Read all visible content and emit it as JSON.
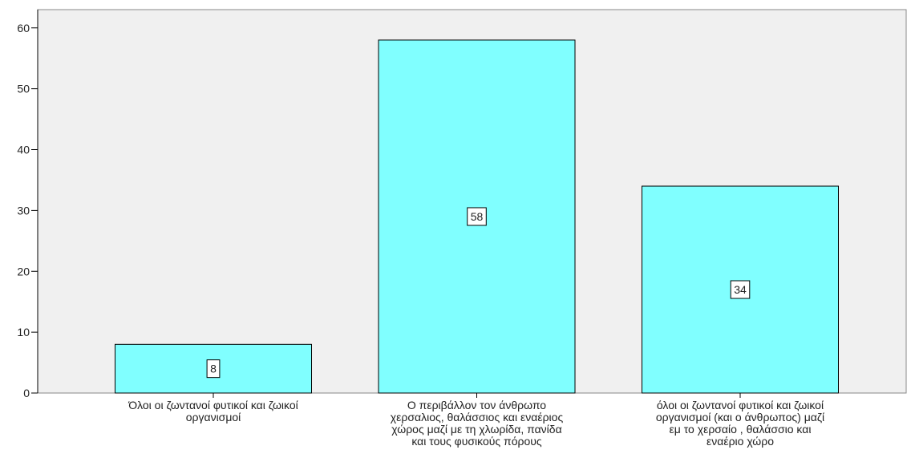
{
  "chart_data": {
    "type": "bar",
    "categories": [
      "Όλοι οι ζωντανοί φυτικοί και ζωικοί\nοργανισμοί",
      "Ο περιβάλλον τον άνθρωπο\nχερσαλιος, θαλάσσιος και εναέριος\nχώρος μαζί με τη χλωρίδα, πανίδα\nκαι τους φυσικούς πόρους",
      "όλοι οι ζωντανοί φυτικοί και ζωικοί\nοργανισμοί (και ο άνθρωπος) μαζί\nεμ το χερσαίο , θαλάσσιο και\nεναέριο χώρο"
    ],
    "values": [
      8,
      58,
      34
    ],
    "color": "#80ffff",
    "ylim": [
      0,
      63
    ],
    "yticks": [
      0,
      10,
      20,
      30,
      40,
      50,
      60
    ],
    "grid": false
  }
}
